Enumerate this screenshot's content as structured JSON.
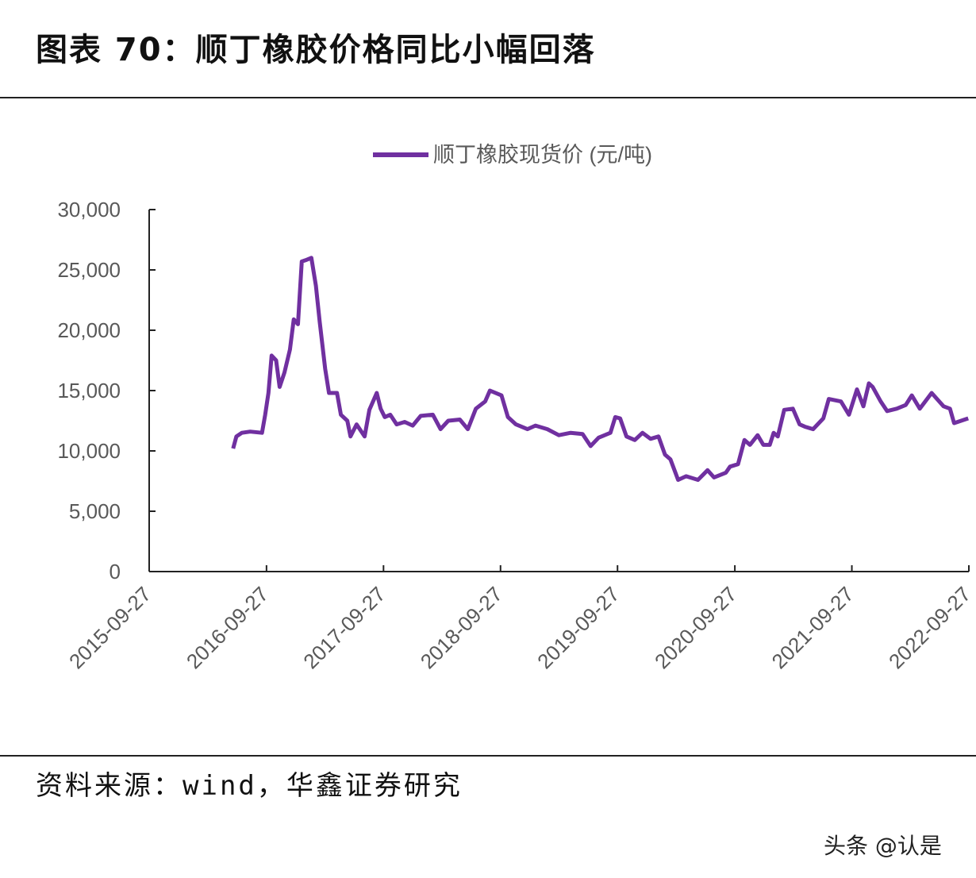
{
  "header": {
    "title": "图表 70：顺丁橡胶价格同比小幅回落"
  },
  "footer": {
    "source": "资料来源：wind，华鑫证券研究",
    "watermark": "头条 @认是"
  },
  "chart_data": {
    "type": "line",
    "title": "",
    "xlabel": "",
    "ylabel": "",
    "ylim": [
      0,
      30000
    ],
    "yticks": [
      "0",
      "5,000",
      "10,000",
      "15,000",
      "20,000",
      "25,000",
      "30,000"
    ],
    "xlim": [
      "2015-09-27",
      "2022-09-27"
    ],
    "xticks": [
      "2015-09-27",
      "2016-09-27",
      "2017-09-27",
      "2018-09-27",
      "2019-09-27",
      "2020-09-27",
      "2021-09-27",
      "2022-09-27"
    ],
    "grid": false,
    "legend_position": "top",
    "colors": {
      "series": "#7030a0"
    },
    "series": [
      {
        "name": "顺丁橡胶现货价 (元/吨)",
        "points": [
          [
            "2016-06-15",
            10200
          ],
          [
            "2016-06-25",
            11200
          ],
          [
            "2016-07-12",
            11500
          ],
          [
            "2016-08-07",
            11600
          ],
          [
            "2016-09-13",
            11500
          ],
          [
            "2016-09-23",
            13000
          ],
          [
            "2016-10-03",
            14800
          ],
          [
            "2016-10-13",
            17900
          ],
          [
            "2016-10-27",
            17500
          ],
          [
            "2016-11-07",
            15300
          ],
          [
            "2016-11-22",
            16500
          ],
          [
            "2016-12-09",
            18400
          ],
          [
            "2016-12-21",
            20900
          ],
          [
            "2017-01-03",
            20500
          ],
          [
            "2017-01-15",
            25700
          ],
          [
            "2017-01-27",
            25800
          ],
          [
            "2017-02-14",
            26000
          ],
          [
            "2017-02-28",
            23700
          ],
          [
            "2017-03-12",
            20700
          ],
          [
            "2017-03-29",
            16800
          ],
          [
            "2017-04-10",
            14800
          ],
          [
            "2017-05-05",
            14800
          ],
          [
            "2017-05-17",
            13000
          ],
          [
            "2017-06-06",
            12500
          ],
          [
            "2017-06-16",
            11200
          ],
          [
            "2017-07-05",
            12200
          ],
          [
            "2017-07-30",
            11200
          ],
          [
            "2017-08-14",
            13400
          ],
          [
            "2017-09-06",
            14800
          ],
          [
            "2017-09-18",
            13500
          ],
          [
            "2017-10-01",
            12800
          ],
          [
            "2017-10-18",
            13000
          ],
          [
            "2017-11-07",
            12200
          ],
          [
            "2017-12-02",
            12400
          ],
          [
            "2017-12-27",
            12100
          ],
          [
            "2018-01-21",
            12900
          ],
          [
            "2018-02-28",
            13000
          ],
          [
            "2018-03-24",
            11800
          ],
          [
            "2018-04-17",
            12500
          ],
          [
            "2018-05-23",
            12600
          ],
          [
            "2018-06-17",
            11800
          ],
          [
            "2018-07-12",
            13500
          ],
          [
            "2018-08-10",
            14100
          ],
          [
            "2018-08-25",
            15000
          ],
          [
            "2018-09-30",
            14600
          ],
          [
            "2018-10-20",
            12800
          ],
          [
            "2018-11-14",
            12200
          ],
          [
            "2018-12-20",
            11800
          ],
          [
            "2019-01-14",
            12100
          ],
          [
            "2019-02-20",
            11800
          ],
          [
            "2019-03-28",
            11300
          ],
          [
            "2019-05-04",
            11500
          ],
          [
            "2019-06-10",
            11400
          ],
          [
            "2019-07-05",
            10400
          ],
          [
            "2019-07-30",
            11100
          ],
          [
            "2019-09-05",
            11500
          ],
          [
            "2019-09-20",
            12800
          ],
          [
            "2019-10-05",
            12700
          ],
          [
            "2019-10-25",
            11200
          ],
          [
            "2019-11-20",
            10900
          ],
          [
            "2019-12-14",
            11500
          ],
          [
            "2020-01-08",
            11000
          ],
          [
            "2020-02-02",
            11200
          ],
          [
            "2020-02-22",
            9700
          ],
          [
            "2020-03-10",
            9300
          ],
          [
            "2020-04-03",
            7600
          ],
          [
            "2020-04-28",
            7900
          ],
          [
            "2020-06-04",
            7600
          ],
          [
            "2020-07-04",
            8400
          ],
          [
            "2020-07-24",
            7800
          ],
          [
            "2020-08-30",
            8200
          ],
          [
            "2020-09-12",
            8700
          ],
          [
            "2020-10-07",
            8900
          ],
          [
            "2020-10-27",
            10900
          ],
          [
            "2020-11-13",
            10500
          ],
          [
            "2020-12-07",
            11300
          ],
          [
            "2020-12-25",
            10500
          ],
          [
            "2021-01-14",
            10500
          ],
          [
            "2021-01-26",
            11500
          ],
          [
            "2021-02-08",
            11200
          ],
          [
            "2021-02-28",
            13400
          ],
          [
            "2021-03-27",
            13500
          ],
          [
            "2021-04-17",
            12200
          ],
          [
            "2021-05-04",
            12000
          ],
          [
            "2021-05-29",
            11800
          ],
          [
            "2021-06-30",
            12700
          ],
          [
            "2021-07-17",
            14300
          ],
          [
            "2021-08-24",
            14100
          ],
          [
            "2021-09-18",
            13000
          ],
          [
            "2021-10-13",
            15100
          ],
          [
            "2021-11-02",
            13700
          ],
          [
            "2021-11-19",
            15600
          ],
          [
            "2021-12-01",
            15300
          ],
          [
            "2021-12-26",
            14100
          ],
          [
            "2022-01-15",
            13300
          ],
          [
            "2022-02-14",
            13500
          ],
          [
            "2022-03-14",
            13800
          ],
          [
            "2022-04-02",
            14600
          ],
          [
            "2022-04-27",
            13500
          ],
          [
            "2022-06-03",
            14800
          ],
          [
            "2022-07-10",
            13700
          ],
          [
            "2022-07-30",
            13500
          ],
          [
            "2022-08-12",
            12300
          ],
          [
            "2022-09-25",
            12700
          ]
        ]
      }
    ]
  }
}
